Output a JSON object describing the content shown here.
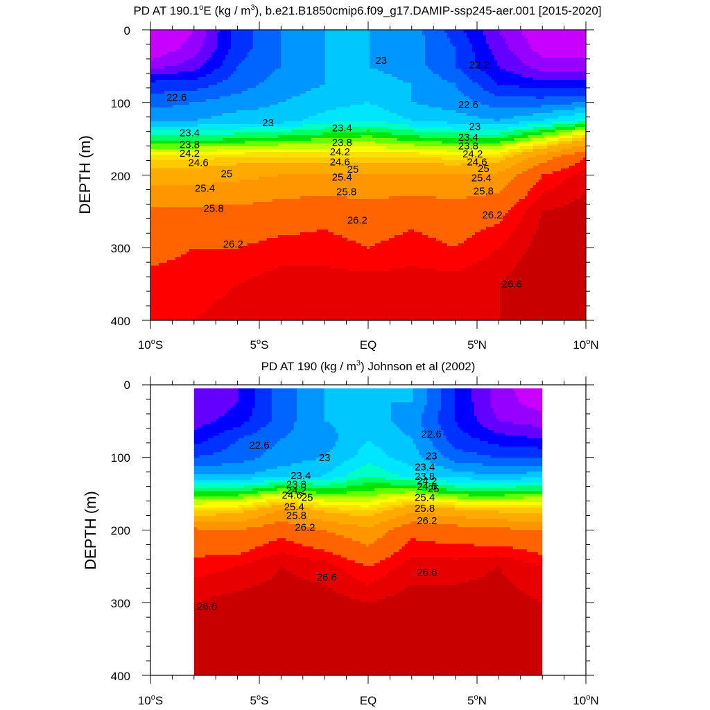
{
  "colors": {
    "levels": [
      {
        "min": -100,
        "color": "#ff00ff"
      },
      {
        "min": 21.5,
        "color": "#c800ff"
      },
      {
        "min": 21.8,
        "color": "#9600ff"
      },
      {
        "min": 22.0,
        "color": "#6400ff"
      },
      {
        "min": 22.2,
        "color": "#0000ff"
      },
      {
        "min": 22.4,
        "color": "#0032ff"
      },
      {
        "min": 22.6,
        "color": "#0064ff"
      },
      {
        "min": 22.8,
        "color": "#0096ff"
      },
      {
        "min": 23.0,
        "color": "#00c8ff"
      },
      {
        "min": 23.2,
        "color": "#00e6ff"
      },
      {
        "min": 23.4,
        "color": "#00ffc8"
      },
      {
        "min": 23.6,
        "color": "#00ff64"
      },
      {
        "min": 23.8,
        "color": "#00e600"
      },
      {
        "min": 24.0,
        "color": "#64ff00"
      },
      {
        "min": 24.2,
        "color": "#c8ff00"
      },
      {
        "min": 24.4,
        "color": "#ffff00"
      },
      {
        "min": 24.6,
        "color": "#ffe100"
      },
      {
        "min": 24.8,
        "color": "#ffc800"
      },
      {
        "min": 25.0,
        "color": "#ffaa00"
      },
      {
        "min": 25.4,
        "color": "#ff9600"
      },
      {
        "min": 25.8,
        "color": "#ff6400"
      },
      {
        "min": 26.2,
        "color": "#ff0000"
      },
      {
        "min": 26.4,
        "color": "#e60000"
      },
      {
        "min": 26.6,
        "color": "#c80000"
      }
    ]
  },
  "chart_data": [
    {
      "type": "heatmap",
      "title": "PD AT 190.1°E (kg / m³), b.e21.B1850cmip6.f09_g17.DAMIP-ssp245-aer.001 [2015-2020]",
      "title_parts": {
        "main": "PD AT 190.1",
        "deg": "o",
        "after_deg": "E (kg / m",
        "sup": "3",
        "tail": "), b.e21.B1850cmip6.f09_g17.DAMIP-ssp245-aer.001 [2015-2020]"
      },
      "ylabel": "DEPTH (m)",
      "xlim": [
        -10,
        10
      ],
      "ylim": [
        400,
        0
      ],
      "y_ticks": [
        "0",
        "100",
        "200",
        "300",
        "400"
      ],
      "x_ticks": [
        {
          "value": -10,
          "num": "10",
          "deg": "o",
          "hemi": "S"
        },
        {
          "value": -5,
          "num": "5",
          "deg": "o",
          "hemi": "S"
        },
        {
          "value": 0,
          "num": "EQ",
          "deg": "",
          "hemi": ""
        },
        {
          "value": 5,
          "num": "5",
          "deg": "o",
          "hemi": "N"
        },
        {
          "value": 10,
          "num": "10",
          "deg": "o",
          "hemi": "N"
        }
      ],
      "data_extent": [
        -10,
        10
      ],
      "contour_interval": 0.2,
      "profile_lat": [
        -10,
        -8,
        -6,
        -4,
        -2,
        0,
        2,
        4,
        6,
        8,
        10
      ],
      "profile_depth": [
        0,
        25,
        50,
        75,
        100,
        125,
        150,
        175,
        200,
        250,
        300,
        350,
        400
      ],
      "density_profiles": [
        [
          21.5,
          21.6,
          21.9,
          22.5,
          22.7,
          23.0,
          23.7,
          24.7,
          25.2,
          25.9,
          26.1,
          26.3,
          26.4
        ],
        [
          21.8,
          21.9,
          22.1,
          22.5,
          22.8,
          23.0,
          23.7,
          24.7,
          25.2,
          25.9,
          26.2,
          26.3,
          26.4
        ],
        [
          22.5,
          22.5,
          22.6,
          22.7,
          22.9,
          23.1,
          23.8,
          24.8,
          25.3,
          25.9,
          26.2,
          26.4,
          26.5
        ],
        [
          22.8,
          22.8,
          22.8,
          22.9,
          23.0,
          23.1,
          23.9,
          24.8,
          25.4,
          26.0,
          26.3,
          26.5,
          26.5
        ],
        [
          23.0,
          23.0,
          23.0,
          23.0,
          23.1,
          23.3,
          24.0,
          24.8,
          25.4,
          26.1,
          26.3,
          26.5,
          26.5
        ],
        [
          23.0,
          23.0,
          23.0,
          23.1,
          23.2,
          23.4,
          24.1,
          24.8,
          25.4,
          26.0,
          26.2,
          26.5,
          26.5
        ],
        [
          22.9,
          22.9,
          22.9,
          23.0,
          23.0,
          23.2,
          23.9,
          24.8,
          25.4,
          26.1,
          26.3,
          26.5,
          26.5
        ],
        [
          22.5,
          22.6,
          22.6,
          22.8,
          22.9,
          23.1,
          23.8,
          24.7,
          25.4,
          26.0,
          26.2,
          26.5,
          26.6
        ],
        [
          22.0,
          22.1,
          22.2,
          22.4,
          22.7,
          23.0,
          23.8,
          24.8,
          25.5,
          26.1,
          26.4,
          26.6,
          26.6
        ],
        [
          21.6,
          21.7,
          21.9,
          22.3,
          22.7,
          23.2,
          24.3,
          25.6,
          26.2,
          26.6,
          26.7,
          26.8,
          26.8
        ],
        [
          21.6,
          21.7,
          21.9,
          22.3,
          22.8,
          23.5,
          25.0,
          26.2,
          26.5,
          26.7,
          26.8,
          26.8,
          26.8
        ]
      ],
      "contour_labels": [
        {
          "text": "22.6",
          "lat": -8.8,
          "depth": 93
        },
        {
          "text": "23",
          "lat": -4.6,
          "depth": 128
        },
        {
          "text": "23.4",
          "lat": -8.2,
          "depth": 142
        },
        {
          "text": "23.8",
          "lat": -8.2,
          "depth": 158
        },
        {
          "text": "24.2",
          "lat": -8.2,
          "depth": 170
        },
        {
          "text": "24.6",
          "lat": -7.8,
          "depth": 183
        },
        {
          "text": "25",
          "lat": -6.5,
          "depth": 198
        },
        {
          "text": "25.4",
          "lat": -7.5,
          "depth": 218
        },
        {
          "text": "25.8",
          "lat": -7.1,
          "depth": 246
        },
        {
          "text": "26.2",
          "lat": -6.2,
          "depth": 295
        },
        {
          "text": "23",
          "lat": 0.6,
          "depth": 42
        },
        {
          "text": "23.4",
          "lat": -1.2,
          "depth": 135
        },
        {
          "text": "23.8",
          "lat": -1.2,
          "depth": 155
        },
        {
          "text": "24.2",
          "lat": -1.3,
          "depth": 168
        },
        {
          "text": "24.6",
          "lat": -1.3,
          "depth": 182
        },
        {
          "text": "25",
          "lat": -0.7,
          "depth": 192
        },
        {
          "text": "25.4",
          "lat": -1.2,
          "depth": 203
        },
        {
          "text": "25.8",
          "lat": -1.0,
          "depth": 223
        },
        {
          "text": "26.2",
          "lat": -0.5,
          "depth": 262
        },
        {
          "text": "22.2",
          "lat": 5.1,
          "depth": 48
        },
        {
          "text": "22.6",
          "lat": 4.6,
          "depth": 103
        },
        {
          "text": "23",
          "lat": 4.9,
          "depth": 133
        },
        {
          "text": "23.4",
          "lat": 4.6,
          "depth": 148
        },
        {
          "text": "23.8",
          "lat": 4.6,
          "depth": 160
        },
        {
          "text": "24.2",
          "lat": 4.8,
          "depth": 171
        },
        {
          "text": "24.6",
          "lat": 5.0,
          "depth": 182
        },
        {
          "text": "25",
          "lat": 5.3,
          "depth": 191
        },
        {
          "text": "25.4",
          "lat": 5.2,
          "depth": 204
        },
        {
          "text": "25.8",
          "lat": 5.3,
          "depth": 222
        },
        {
          "text": "26.2",
          "lat": 5.7,
          "depth": 255
        },
        {
          "text": "26.6",
          "lat": 6.6,
          "depth": 350
        }
      ]
    },
    {
      "type": "heatmap",
      "title": "PD AT 190 (kg / m³) Johnson et al (2002)",
      "title_parts": {
        "main": "PD AT 190",
        "deg": "",
        "after_deg": " (kg / m",
        "sup": "3",
        "tail": ") Johnson et al (2002)"
      },
      "ylabel": "DEPTH (m)",
      "xlim": [
        -10,
        10
      ],
      "ylim": [
        400,
        0
      ],
      "y_ticks": [
        "0",
        "100",
        "200",
        "300",
        "400"
      ],
      "x_ticks": [
        {
          "value": -10,
          "num": "10",
          "deg": "o",
          "hemi": "S"
        },
        {
          "value": -5,
          "num": "5",
          "deg": "o",
          "hemi": "S"
        },
        {
          "value": 0,
          "num": "EQ",
          "deg": "",
          "hemi": ""
        },
        {
          "value": 5,
          "num": "5",
          "deg": "o",
          "hemi": "N"
        },
        {
          "value": 10,
          "num": "10",
          "deg": "o",
          "hemi": "N"
        }
      ],
      "data_extent": [
        -8,
        8
      ],
      "contour_interval": 0.2,
      "profile_lat": [
        -8,
        -6,
        -4,
        -2,
        0,
        2,
        4,
        6,
        8
      ],
      "profile_depth": [
        5,
        25,
        50,
        75,
        100,
        125,
        150,
        175,
        200,
        250,
        300,
        350,
        400
      ],
      "density_profiles": [
        [
          22.0,
          22.0,
          22.1,
          22.3,
          22.6,
          23.0,
          23.9,
          24.8,
          25.9,
          26.3,
          26.6,
          26.8,
          26.9
        ],
        [
          22.2,
          22.2,
          22.3,
          22.6,
          22.7,
          23.0,
          23.9,
          24.9,
          25.8,
          26.4,
          26.7,
          26.8,
          26.9
        ],
        [
          22.7,
          22.7,
          22.7,
          22.8,
          22.9,
          23.1,
          24.3,
          25.5,
          26.1,
          26.6,
          26.7,
          26.8,
          26.8
        ],
        [
          23.0,
          23.0,
          23.0,
          22.9,
          23.0,
          23.2,
          24.0,
          25.0,
          25.8,
          26.5,
          26.7,
          26.8,
          26.8
        ],
        [
          23.0,
          23.0,
          23.1,
          23.2,
          23.3,
          23.6,
          24.1,
          24.8,
          25.5,
          26.2,
          26.6,
          26.8,
          26.8
        ],
        [
          23.0,
          23.0,
          22.9,
          23.0,
          23.1,
          23.3,
          24.3,
          25.4,
          26.1,
          26.5,
          26.7,
          26.8,
          26.8
        ],
        [
          22.4,
          22.4,
          22.4,
          22.5,
          22.7,
          23.1,
          23.9,
          25.2,
          26.0,
          26.5,
          26.7,
          26.8,
          26.9
        ],
        [
          21.9,
          21.9,
          22.0,
          22.3,
          22.6,
          23.0,
          23.9,
          25.0,
          25.9,
          26.6,
          26.7,
          26.8,
          26.9
        ],
        [
          21.6,
          21.7,
          21.9,
          22.2,
          22.6,
          23.1,
          24.0,
          25.0,
          25.8,
          26.4,
          26.6,
          26.8,
          26.9
        ]
      ],
      "contour_labels": [
        {
          "text": "22.6",
          "lat": -5.0,
          "depth": 83
        },
        {
          "text": "23",
          "lat": -2.0,
          "depth": 100
        },
        {
          "text": "23.4",
          "lat": -3.1,
          "depth": 125
        },
        {
          "text": "23.8",
          "lat": -3.3,
          "depth": 137
        },
        {
          "text": "24.2",
          "lat": -3.3,
          "depth": 145
        },
        {
          "text": "24.6",
          "lat": -3.5,
          "depth": 152
        },
        {
          "text": "25",
          "lat": -2.8,
          "depth": 155
        },
        {
          "text": "25.4",
          "lat": -3.4,
          "depth": 168
        },
        {
          "text": "25.8",
          "lat": -3.3,
          "depth": 180
        },
        {
          "text": "26.2",
          "lat": -2.9,
          "depth": 196
        },
        {
          "text": "26.6",
          "lat": -1.9,
          "depth": 265
        },
        {
          "text": "26.6",
          "lat": -7.4,
          "depth": 305
        },
        {
          "text": "22.6",
          "lat": 2.9,
          "depth": 68
        },
        {
          "text": "23",
          "lat": 2.9,
          "depth": 98
        },
        {
          "text": "23.4",
          "lat": 2.6,
          "depth": 113
        },
        {
          "text": "23.8",
          "lat": 2.6,
          "depth": 126
        },
        {
          "text": "24.2",
          "lat": 2.7,
          "depth": 132
        },
        {
          "text": "24.6",
          "lat": 2.7,
          "depth": 140
        },
        {
          "text": "25",
          "lat": 3.0,
          "depth": 143
        },
        {
          "text": "25.4",
          "lat": 2.6,
          "depth": 155
        },
        {
          "text": "25.8",
          "lat": 2.6,
          "depth": 170
        },
        {
          "text": "26.2",
          "lat": 2.7,
          "depth": 187
        },
        {
          "text": "26.6",
          "lat": 2.7,
          "depth": 258
        }
      ]
    }
  ]
}
